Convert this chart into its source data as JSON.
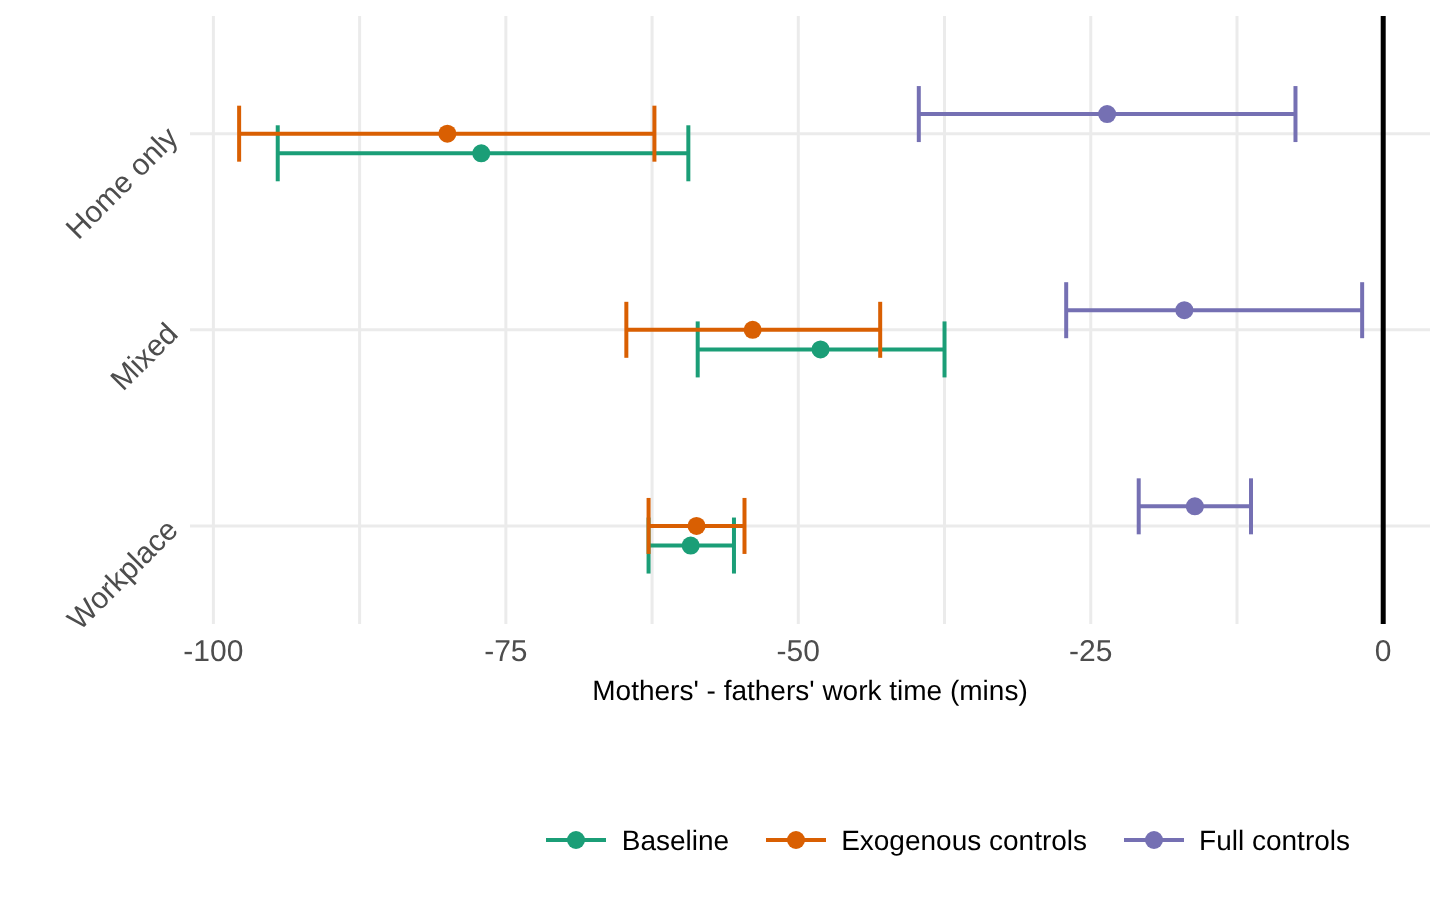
{
  "chart_data": {
    "type": "scatter",
    "orientation": "horizontal",
    "xlabel": "Mothers' - fathers' work time (mins)",
    "categories": [
      "Home only",
      "Mixed",
      "Workplace"
    ],
    "series": [
      {
        "name": "Baseline",
        "color": "#1b9e77",
        "values": [
          -77.1,
          -48.1,
          -59.2
        ],
        "errors": [
          [
            -94.5,
            -59.4
          ],
          [
            -58.6,
            -37.5
          ],
          [
            -62.8,
            -55.5
          ]
        ]
      },
      {
        "name": "Exogenous controls",
        "color": "#d95f02",
        "values": [
          -80.0,
          -53.9,
          -58.7
        ],
        "errors": [
          [
            -97.8,
            -62.3
          ],
          [
            -64.7,
            -43.0
          ],
          [
            -62.8,
            -54.6
          ]
        ]
      },
      {
        "name": "Full controls",
        "color": "#7570b3",
        "values": [
          -23.6,
          -17.0,
          -16.1
        ],
        "errors": [
          [
            -39.7,
            -7.5
          ],
          [
            -27.1,
            -1.8
          ],
          [
            -20.9,
            -11.3
          ]
        ]
      }
    ],
    "xlim": [
      -102,
      4
    ],
    "xticks": [
      -100,
      {
        "value": -87.5,
        "label": null
      },
      -75,
      {
        "value": -62.5,
        "label": null
      },
      -50,
      {
        "value": -37.5,
        "label": null
      },
      -25,
      {
        "value": -12.5,
        "label": null
      },
      0
    ],
    "ref_lines": [
      {
        "axis": "x",
        "value": 0,
        "color": "#000000"
      }
    ],
    "grid": true,
    "legend": "bottom",
    "marker": "circle"
  }
}
